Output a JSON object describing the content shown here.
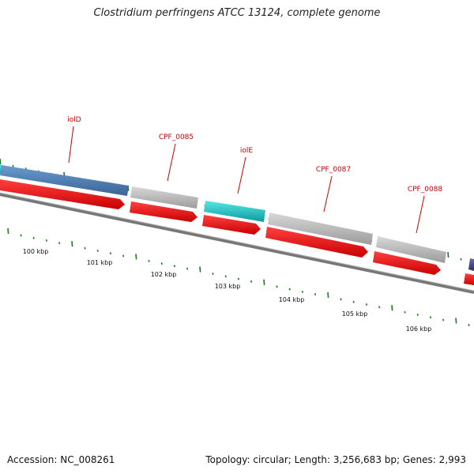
{
  "header": {
    "title": "Clostridium perfringens ATCC 13124, complete genome"
  },
  "footer": {
    "accession": "Accession: NC_008261",
    "summary": "Topology: circular; Length: 3,256,683 bp; Genes: 2,993"
  },
  "colors": {
    "backbone": "#777777",
    "cds": "#ee1111",
    "tick": "#1a7a1a",
    "gene_label": "#cc0000",
    "iolD": "#4a7bb0",
    "grey_gene": "#bdbdbd",
    "iolE": "#22cccc",
    "purple_gene": "#4a4a8a"
  },
  "ruler": {
    "labels": [
      "100 kbp",
      "101 kbp",
      "102 kbp",
      "103 kbp",
      "104 kbp",
      "105 kbp",
      "106 kbp"
    ]
  },
  "genes": [
    {
      "name": "iolD",
      "label": "iolD"
    },
    {
      "name": "cpf-0085",
      "label": "CPF_0085"
    },
    {
      "name": "iolE",
      "label": "iolE"
    },
    {
      "name": "cpf-0087",
      "label": "CPF_0087"
    },
    {
      "name": "cpf-0088",
      "label": "CPF_0088"
    }
  ]
}
